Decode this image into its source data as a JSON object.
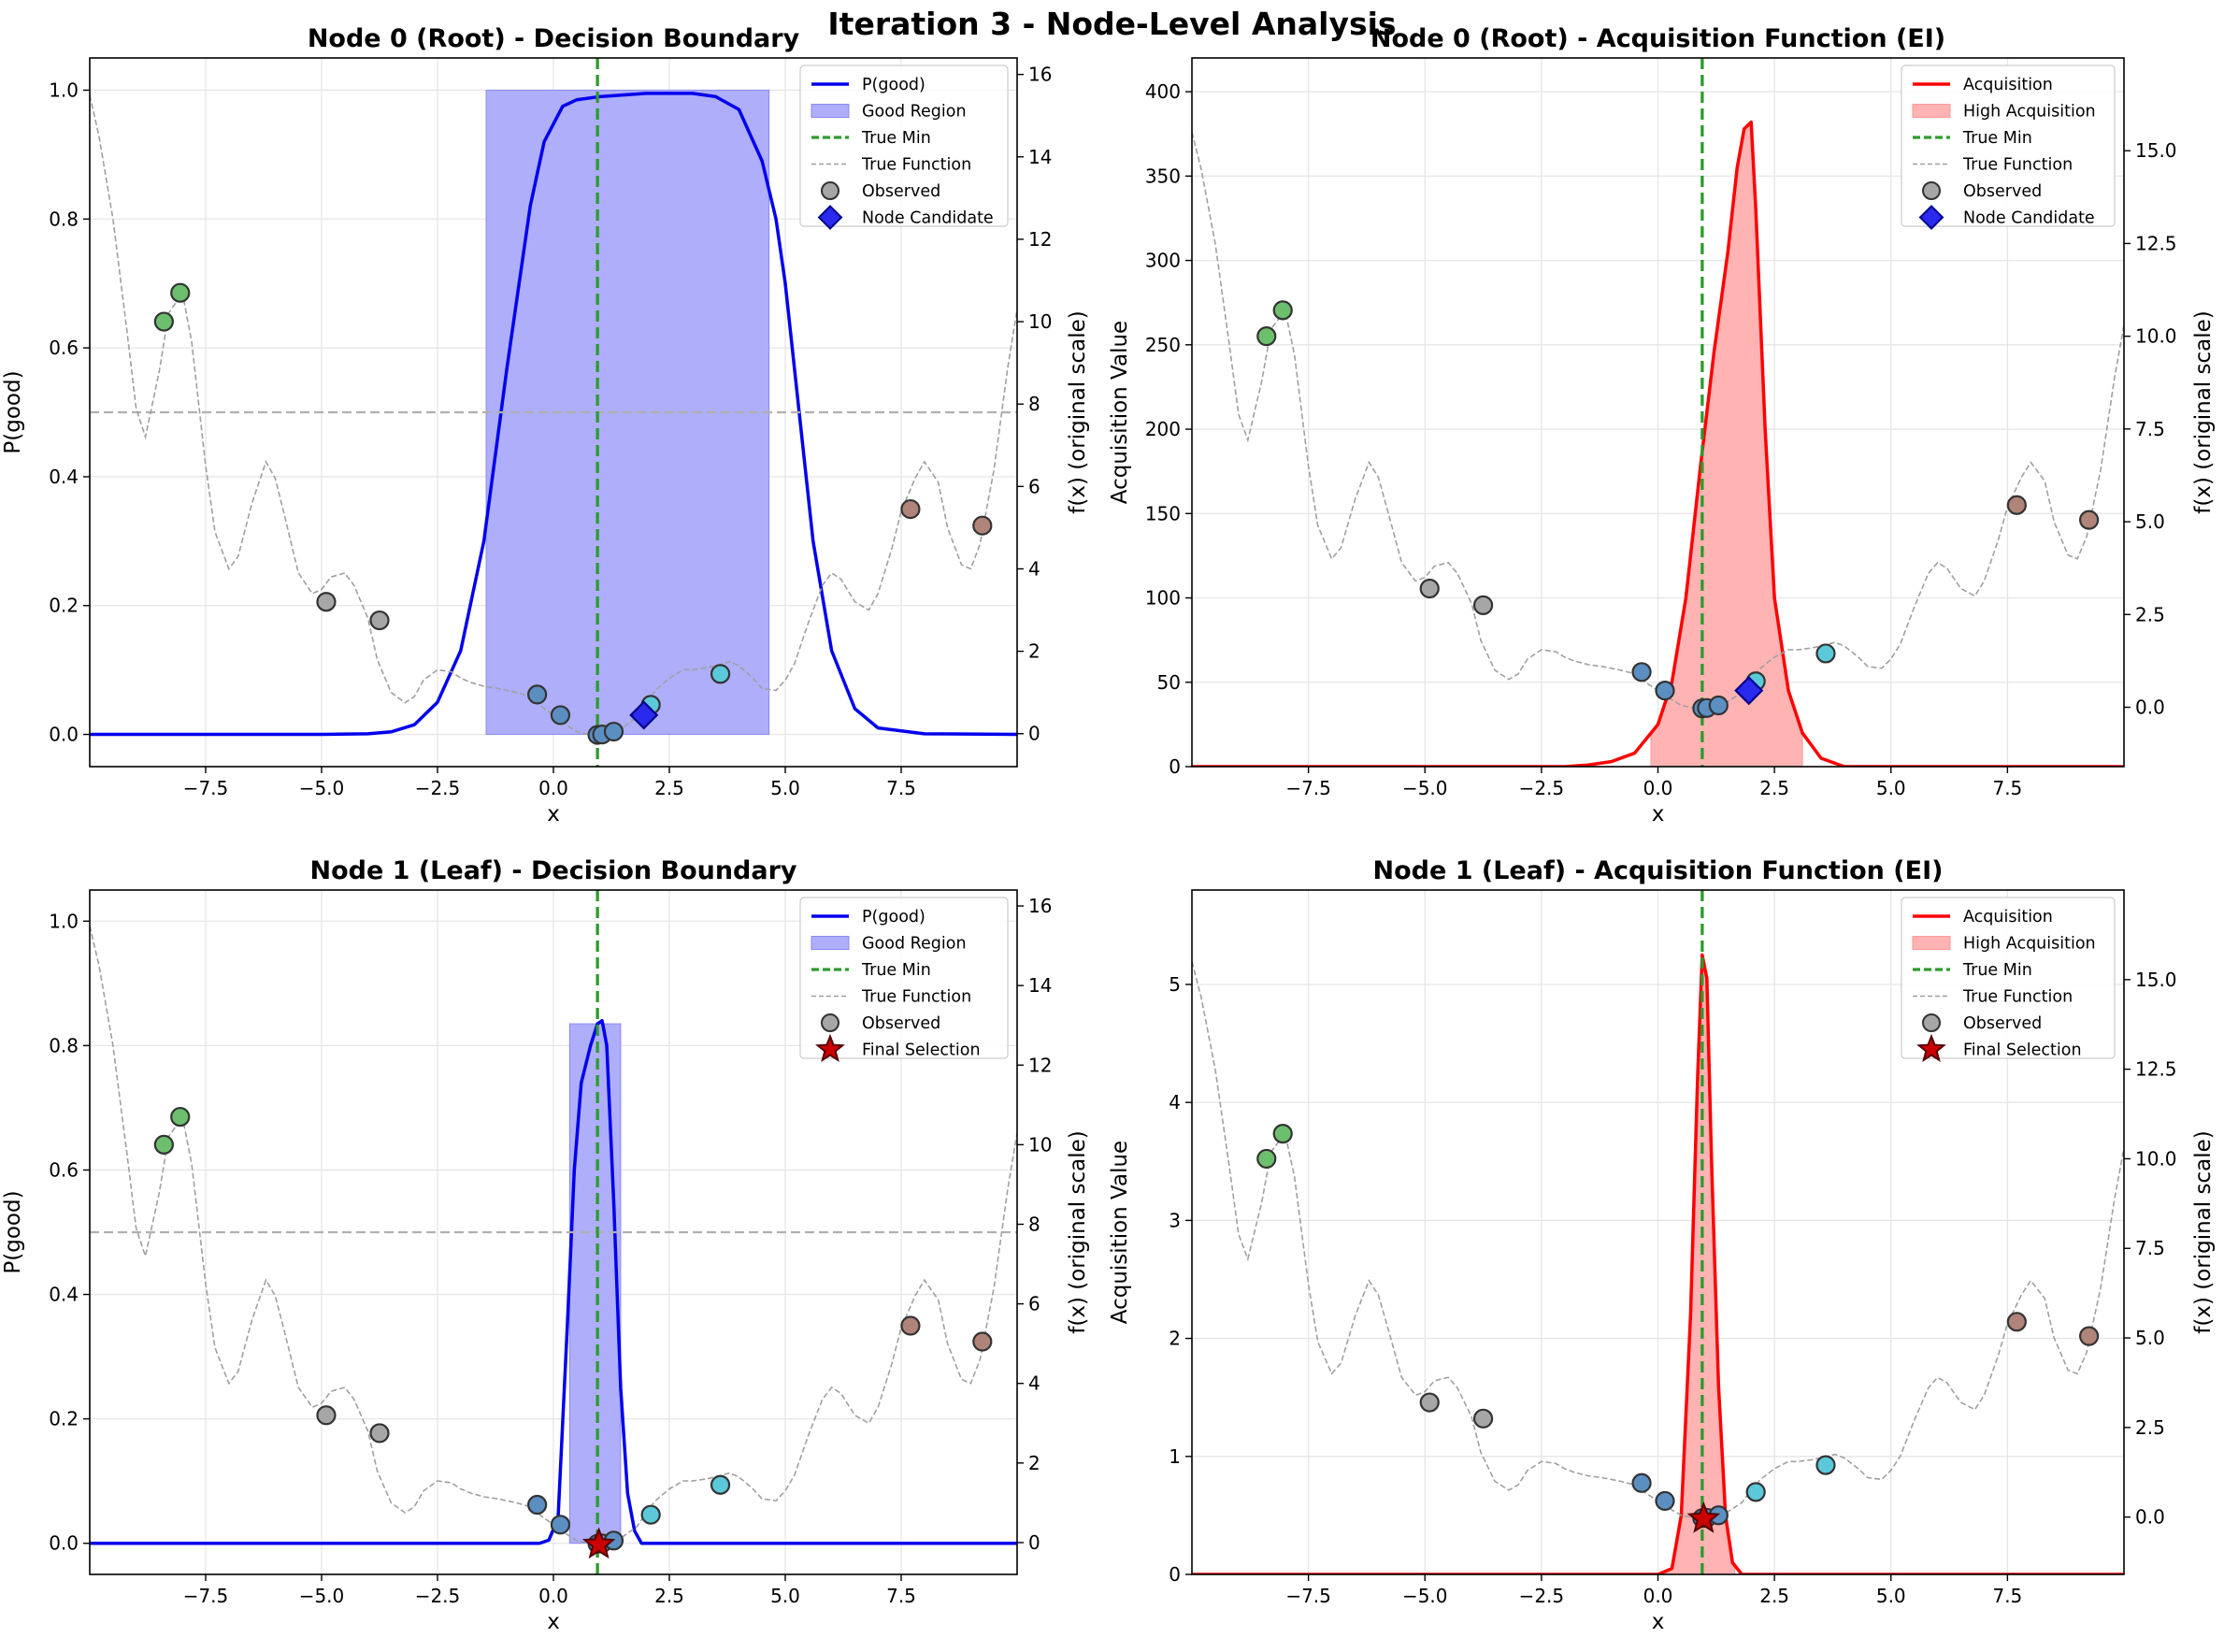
{
  "figure": {
    "suptitle": "Iteration 3 - Node-Level Analysis",
    "true_min_x": 0.95,
    "p_threshold": 0.5,
    "colors": {
      "p_line": "#0000ee",
      "p_fill": "#aeaefb",
      "acq_line": "#ff0000",
      "acq_fill": "#ffb3b3",
      "true_min": "#2e9a2e",
      "true_function": "#a0a0a0",
      "threshold": "#b0b0b0",
      "candidate": "#2a2aee",
      "final_selection": "#cc0000"
    }
  },
  "chart_data": [
    {
      "id": "node0-decision",
      "type": "line",
      "title": "Node 0 (Root) - Decision Boundary",
      "xlabel": "x",
      "ylabel": "P(good)",
      "y2label": "f(x) (original scale)",
      "xlim": [
        -10,
        10
      ],
      "ylim": [
        -0.05,
        1.05
      ],
      "y2lim": [
        -0.8,
        16.4
      ],
      "xticks": [
        -7.5,
        -5.0,
        -2.5,
        0.0,
        2.5,
        5.0,
        7.5
      ],
      "yticks": [
        0.0,
        0.2,
        0.4,
        0.6,
        0.8,
        1.0
      ],
      "y2ticks": [
        0,
        2,
        4,
        6,
        8,
        10,
        12,
        14,
        16
      ],
      "xtick_labels": [
        "−7.5",
        "−5.0",
        "−2.5",
        "0.0",
        "2.5",
        "5.0",
        "7.5"
      ],
      "ytick_labels": [
        "0.0",
        "0.2",
        "0.4",
        "0.6",
        "0.8",
        "1.0"
      ],
      "y2tick_labels": [
        "0",
        "2",
        "4",
        "6",
        "8",
        "10",
        "12",
        "14",
        "16"
      ],
      "grid": true,
      "legend_position": "top-right",
      "legend": [
        "P(good)",
        "Good Region",
        "True Min",
        "True Function",
        "Observed",
        "Node Candidate"
      ],
      "series_curve": {
        "name": "P(good)",
        "x": [
          -10,
          -5,
          -4,
          -3.5,
          -3,
          -2.5,
          -2,
          -1.5,
          -1,
          -0.5,
          -0.2,
          0.2,
          0.5,
          1,
          2,
          3,
          3.5,
          4,
          4.5,
          4.8,
          5,
          5.3,
          5.6,
          6,
          6.5,
          7,
          8,
          10
        ],
        "y": [
          0,
          0,
          0.001,
          0.004,
          0.015,
          0.05,
          0.13,
          0.3,
          0.57,
          0.82,
          0.92,
          0.975,
          0.985,
          0.99,
          0.995,
          0.995,
          0.99,
          0.97,
          0.89,
          0.8,
          0.7,
          0.5,
          0.3,
          0.13,
          0.04,
          0.01,
          0.001,
          0
        ]
      },
      "good_region": {
        "x_start": -1.45,
        "x_end": 4.65,
        "height": 1.0
      },
      "candidate": {
        "x": 1.95,
        "f": 0.45
      },
      "final_selection": null
    },
    {
      "id": "node0-acquisition",
      "type": "line",
      "title": "Node 0 (Root) - Acquisition Function (EI)",
      "xlabel": "x",
      "ylabel": "Acquisition Value",
      "y2label": "f(x) (original scale)",
      "xlim": [
        -10,
        10
      ],
      "ylim": [
        0,
        420
      ],
      "y2lim": [
        -1.6,
        17.5
      ],
      "xticks": [
        -7.5,
        -5.0,
        -2.5,
        0.0,
        2.5,
        5.0,
        7.5
      ],
      "yticks": [
        0,
        50,
        100,
        150,
        200,
        250,
        300,
        350,
        400
      ],
      "y2ticks": [
        0.0,
        2.5,
        5.0,
        7.5,
        10.0,
        12.5,
        15.0
      ],
      "xtick_labels": [
        "−7.5",
        "−5.0",
        "−2.5",
        "0.0",
        "2.5",
        "5.0",
        "7.5"
      ],
      "ytick_labels": [
        "0",
        "50",
        "100",
        "150",
        "200",
        "250",
        "300",
        "350",
        "400"
      ],
      "y2tick_labels": [
        "0.0",
        "2.5",
        "5.0",
        "7.5",
        "10.0",
        "12.5",
        "15.0"
      ],
      "grid": true,
      "legend_position": "top-right",
      "legend": [
        "Acquisition",
        "High Acquisition",
        "True Min",
        "True Function",
        "Observed",
        "Node Candidate"
      ],
      "series_curve": {
        "name": "Acquisition",
        "x": [
          -10,
          -2,
          -1.5,
          -1,
          -0.5,
          0,
          0.3,
          0.6,
          0.9,
          1.2,
          1.5,
          1.7,
          1.85,
          2.0,
          2.1,
          2.3,
          2.5,
          2.8,
          3.1,
          3.5,
          4,
          10
        ],
        "y": [
          0,
          0,
          1,
          3,
          8,
          25,
          50,
          100,
          175,
          245,
          305,
          355,
          378,
          382,
          330,
          200,
          100,
          45,
          20,
          5,
          0,
          0
        ]
      },
      "good_region": {
        "x_start": -0.15,
        "x_end": 3.1,
        "height": null
      },
      "candidate": {
        "x": 1.95,
        "f": 0.45
      },
      "final_selection": null
    },
    {
      "id": "node1-decision",
      "type": "line",
      "title": "Node 1 (Leaf) - Decision Boundary",
      "xlabel": "x",
      "ylabel": "P(good)",
      "y2label": "f(x) (original scale)",
      "xlim": [
        -10,
        10
      ],
      "ylim": [
        -0.05,
        1.05
      ],
      "y2lim": [
        -0.8,
        16.4
      ],
      "xticks": [
        -7.5,
        -5.0,
        -2.5,
        0.0,
        2.5,
        5.0,
        7.5
      ],
      "yticks": [
        0.0,
        0.2,
        0.4,
        0.6,
        0.8,
        1.0
      ],
      "y2ticks": [
        0,
        2,
        4,
        6,
        8,
        10,
        12,
        14,
        16
      ],
      "xtick_labels": [
        "−7.5",
        "−5.0",
        "−2.5",
        "0.0",
        "2.5",
        "5.0",
        "7.5"
      ],
      "ytick_labels": [
        "0.0",
        "0.2",
        "0.4",
        "0.6",
        "0.8",
        "1.0"
      ],
      "y2tick_labels": [
        "0",
        "2",
        "4",
        "6",
        "8",
        "10",
        "12",
        "14",
        "16"
      ],
      "grid": true,
      "legend_position": "top-right",
      "legend": [
        "P(good)",
        "Good Region",
        "True Min",
        "True Function",
        "Observed",
        "Final Selection"
      ],
      "series_curve": {
        "name": "P(good)",
        "x": [
          -10,
          -0.3,
          -0.1,
          0.1,
          0.3,
          0.45,
          0.6,
          0.8,
          0.95,
          1.05,
          1.15,
          1.3,
          1.45,
          1.6,
          1.75,
          1.9,
          10
        ],
        "y": [
          0,
          0,
          0.005,
          0.04,
          0.35,
          0.6,
          0.74,
          0.8,
          0.835,
          0.84,
          0.8,
          0.55,
          0.25,
          0.08,
          0.02,
          0,
          0
        ]
      },
      "good_region": {
        "x_start": 0.35,
        "x_end": 1.45,
        "height": 0.835
      },
      "candidate": null,
      "final_selection": {
        "x": 0.98,
        "f": -0.05
      }
    },
    {
      "id": "node1-acquisition",
      "type": "line",
      "title": "Node 1 (Leaf) - Acquisition Function (EI)",
      "xlabel": "x",
      "ylabel": "Acquisition Value",
      "y2label": "f(x) (original scale)",
      "xlim": [
        -10,
        10
      ],
      "ylim": [
        0,
        5.8
      ],
      "y2lim": [
        -1.6,
        17.5
      ],
      "xticks": [
        -7.5,
        -5.0,
        -2.5,
        0.0,
        2.5,
        5.0,
        7.5
      ],
      "yticks": [
        0,
        1,
        2,
        3,
        4,
        5
      ],
      "y2ticks": [
        0.0,
        2.5,
        5.0,
        7.5,
        10.0,
        12.5,
        15.0
      ],
      "xtick_labels": [
        "−7.5",
        "−5.0",
        "−2.5",
        "0.0",
        "2.5",
        "5.0",
        "7.5"
      ],
      "ytick_labels": [
        "0",
        "1",
        "2",
        "3",
        "4",
        "5"
      ],
      "y2tick_labels": [
        "0.0",
        "2.5",
        "5.0",
        "7.5",
        "10.0",
        "12.5",
        "15.0"
      ],
      "grid": true,
      "legend_position": "top-right",
      "legend": [
        "Acquisition",
        "High Acquisition",
        "True Min",
        "True Function",
        "Observed",
        "Final Selection"
      ],
      "series_curve": {
        "name": "Acquisition",
        "x": [
          -10,
          0,
          0.3,
          0.5,
          0.7,
          0.85,
          0.95,
          1.05,
          1.15,
          1.3,
          1.45,
          1.6,
          1.8,
          10
        ],
        "y": [
          0,
          0,
          0.05,
          0.5,
          2.2,
          4.2,
          5.25,
          5.05,
          3.5,
          1.6,
          0.5,
          0.1,
          0,
          0
        ]
      },
      "good_region": {
        "x_start": 0.05,
        "x_end": 1.65,
        "height": null
      },
      "candidate": null,
      "final_selection": {
        "x": 0.98,
        "f": -0.05
      }
    }
  ],
  "true_function": {
    "x": [
      -10,
      -9.8,
      -9.5,
      -9.2,
      -9.0,
      -8.8,
      -8.5,
      -8.3,
      -8.0,
      -7.8,
      -7.5,
      -7.3,
      -7.0,
      -6.8,
      -6.5,
      -6.2,
      -6.0,
      -5.8,
      -5.5,
      -5.2,
      -5.0,
      -4.8,
      -4.5,
      -4.3,
      -4.0,
      -3.8,
      -3.5,
      -3.2,
      -3.0,
      -2.8,
      -2.5,
      -2.2,
      -2.0,
      -1.8,
      -1.5,
      -1.2,
      -1.0,
      -0.8,
      -0.5,
      -0.3,
      0.0,
      0.3,
      0.5,
      0.8,
      1.0,
      1.2,
      1.5,
      1.8,
      2.0,
      2.2,
      2.5,
      2.8,
      3.0,
      3.3,
      3.5,
      3.8,
      4.0,
      4.3,
      4.5,
      4.8,
      5.0,
      5.2,
      5.5,
      5.8,
      6.0,
      6.2,
      6.5,
      6.8,
      7.0,
      7.3,
      7.5,
      7.8,
      8.0,
      8.3,
      8.5,
      8.8,
      9.0,
      9.2,
      9.5,
      9.8,
      10.0
    ],
    "f": [
      15.5,
      14.5,
      12.5,
      9.8,
      7.9,
      7.2,
      8.8,
      10.2,
      10.7,
      9.5,
      6.5,
      4.9,
      4.0,
      4.3,
      5.6,
      6.6,
      6.2,
      5.3,
      3.9,
      3.4,
      3.5,
      3.8,
      3.9,
      3.6,
      2.8,
      1.8,
      1.0,
      0.75,
      0.9,
      1.3,
      1.55,
      1.5,
      1.35,
      1.25,
      1.15,
      1.1,
      1.05,
      1.0,
      0.9,
      0.7,
      0.45,
      0.2,
      0.05,
      -0.03,
      0.0,
      0.05,
      0.15,
      0.4,
      0.75,
      1.05,
      1.35,
      1.55,
      1.55,
      1.6,
      1.65,
      1.75,
      1.65,
      1.35,
      1.1,
      1.05,
      1.3,
      1.7,
      2.7,
      3.6,
      3.9,
      3.75,
      3.2,
      3.0,
      3.4,
      4.5,
      5.4,
      6.2,
      6.6,
      6.1,
      5.0,
      4.1,
      4.0,
      4.6,
      6.4,
      8.9,
      10.3
    ]
  },
  "observed_points": [
    {
      "x": -8.4,
      "f": 10.0,
      "color": "#6cbf6c"
    },
    {
      "x": -8.05,
      "f": 10.7,
      "color": "#6cbf6c"
    },
    {
      "x": -4.9,
      "f": 3.2,
      "color": "#a6a6a6"
    },
    {
      "x": -3.75,
      "f": 2.75,
      "color": "#a6a6a6"
    },
    {
      "x": -0.35,
      "f": 0.95,
      "color": "#5b8fc2"
    },
    {
      "x": 0.15,
      "f": 0.45,
      "color": "#5b8fc2"
    },
    {
      "x": 0.95,
      "f": -0.03,
      "color": "#5b8fc2"
    },
    {
      "x": 1.05,
      "f": -0.02,
      "color": "#5b8fc2"
    },
    {
      "x": 1.3,
      "f": 0.05,
      "color": "#5b8fc2"
    },
    {
      "x": 2.1,
      "f": 0.7,
      "color": "#5bc9d9"
    },
    {
      "x": 3.6,
      "f": 1.45,
      "color": "#5bc9d9"
    },
    {
      "x": 7.7,
      "f": 5.45,
      "color": "#b08478"
    },
    {
      "x": 9.25,
      "f": 5.05,
      "color": "#b08478"
    }
  ]
}
